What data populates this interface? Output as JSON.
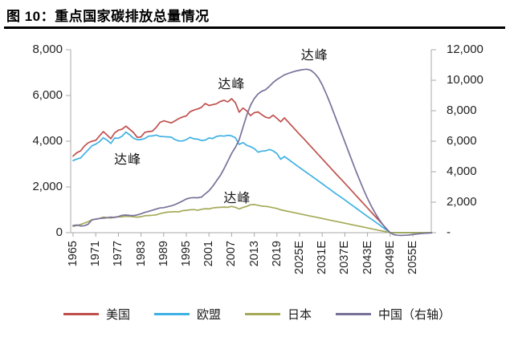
{
  "figure": {
    "title": "图 10：重点国家碳排放总量情况"
  },
  "colors": {
    "axis": "#A8A8A8",
    "tick_text": "#1f1f1f",
    "us": "#C0504D",
    "eu": "#3FB1E3",
    "japan": "#A6AA58",
    "china": "#79719A"
  },
  "chart_data": {
    "type": "line",
    "title": "重点国家碳排放总量情况",
    "x_axis": {
      "start_year": 1965,
      "end_year": 2060,
      "tick_labels": [
        "1965",
        "1971",
        "1977",
        "1983",
        "1989",
        "1995",
        "2001",
        "2007",
        "2013",
        "2019",
        "2025E",
        "2031E",
        "2037E",
        "2043E",
        "2049E",
        "2055E"
      ]
    },
    "left_axis": {
      "min": 0,
      "max": 8000,
      "tick_values": [
        8000,
        6000,
        4000,
        2000,
        0
      ],
      "tick_labels": [
        "8,000",
        "6,000",
        "4,000",
        "2,000",
        "0"
      ]
    },
    "right_axis": {
      "min": 0,
      "max": 12000,
      "tick_values": [
        12000,
        10000,
        8000,
        6000,
        4000,
        2000,
        0
      ],
      "tick_labels": [
        "12,000",
        "10,000",
        "8,000",
        "6,000",
        "4,000",
        "2,000",
        "-"
      ]
    },
    "annotations": [
      {
        "text": "达峰",
        "series": "eu",
        "year": 1979.5,
        "value": 3250,
        "axis": "left"
      },
      {
        "text": "达峰",
        "series": "us",
        "year": 2007,
        "value": 6550,
        "axis": "left"
      },
      {
        "text": "达峰",
        "series": "japan",
        "year": 2008.5,
        "value": 1580,
        "axis": "left"
      },
      {
        "text": "达峰",
        "series": "china",
        "year": 2029,
        "value": 11750,
        "axis": "right"
      }
    ],
    "series": [
      {
        "key": "us",
        "name": "美国",
        "axis": "left",
        "color": "#C0504D",
        "start_year": 1965,
        "values": [
          3350,
          3500,
          3580,
          3790,
          3930,
          4000,
          4040,
          4230,
          4420,
          4270,
          4110,
          4360,
          4480,
          4530,
          4660,
          4520,
          4380,
          4170,
          4190,
          4390,
          4420,
          4440,
          4600,
          4820,
          4890,
          4850,
          4800,
          4890,
          4990,
          5060,
          5110,
          5290,
          5360,
          5410,
          5480,
          5650,
          5560,
          5600,
          5640,
          5740,
          5790,
          5720,
          5860,
          5680,
          5270,
          5450,
          5330,
          5120,
          5250,
          5280,
          5160,
          5050,
          5010,
          5140,
          5000,
          4850,
          5020,
          4840,
          4660,
          4480,
          4300,
          4130,
          3950,
          3770,
          3590,
          3410,
          3230,
          3050,
          2870,
          2690,
          2510,
          2340,
          2160,
          1980,
          1800,
          1620,
          1440,
          1260,
          1080,
          900,
          720,
          540,
          360,
          180,
          0,
          0,
          0,
          0,
          0,
          0,
          0,
          0,
          0,
          0,
          0,
          0
        ]
      },
      {
        "key": "eu",
        "name": "欧盟",
        "axis": "left",
        "color": "#3FB1E3",
        "start_year": 1965,
        "values": [
          3150,
          3220,
          3270,
          3450,
          3620,
          3800,
          3870,
          3980,
          4150,
          4050,
          3900,
          4140,
          4130,
          4220,
          4400,
          4280,
          4130,
          4070,
          4070,
          4120,
          4220,
          4230,
          4270,
          4210,
          4200,
          4190,
          4180,
          4070,
          4010,
          4010,
          4070,
          4170,
          4100,
          4090,
          4030,
          4050,
          4140,
          4120,
          4210,
          4240,
          4220,
          4260,
          4230,
          4150,
          3860,
          3940,
          3820,
          3760,
          3680,
          3520,
          3570,
          3580,
          3640,
          3580,
          3460,
          3210,
          3330,
          3210,
          3090,
          2970,
          2850,
          2730,
          2610,
          2500,
          2380,
          2260,
          2140,
          2020,
          1900,
          1780,
          1660,
          1550,
          1430,
          1310,
          1190,
          1070,
          950,
          830,
          710,
          600,
          480,
          360,
          240,
          120,
          0,
          0,
          0,
          0,
          0,
          0,
          0,
          0,
          0,
          0,
          0,
          0
        ]
      },
      {
        "key": "japan",
        "name": "日本",
        "axis": "left",
        "color": "#A6AA58",
        "start_year": 1965,
        "values": [
          280,
          310,
          360,
          420,
          480,
          560,
          590,
          620,
          680,
          660,
          640,
          680,
          700,
          690,
          720,
          710,
          700,
          680,
          700,
          740,
          750,
          760,
          780,
          830,
          870,
          900,
          910,
          920,
          910,
          960,
          980,
          1000,
          1010,
          980,
          1020,
          1050,
          1040,
          1080,
          1100,
          1110,
          1120,
          1110,
          1150,
          1110,
          1040,
          1100,
          1150,
          1220,
          1230,
          1200,
          1160,
          1150,
          1130,
          1090,
          1060,
          1000,
          966,
          931,
          897,
          862,
          828,
          793,
          759,
          724,
          690,
          655,
          621,
          586,
          552,
          517,
          483,
          448,
          414,
          379,
          345,
          310,
          276,
          241,
          207,
          172,
          138,
          103,
          69,
          34,
          0,
          0,
          0,
          0,
          0,
          0,
          0,
          0,
          0,
          0,
          0,
          0
        ]
      },
      {
        "key": "china",
        "name": "中国（右轴）",
        "axis": "right",
        "color": "#79719A",
        "start_year": 1965,
        "values": [
          470,
          500,
          440,
          460,
          560,
          850,
          890,
          930,
          950,
          980,
          1020,
          1000,
          1060,
          1140,
          1160,
          1130,
          1120,
          1170,
          1240,
          1330,
          1400,
          1470,
          1550,
          1620,
          1640,
          1700,
          1760,
          1840,
          1960,
          2080,
          2210,
          2280,
          2300,
          2290,
          2330,
          2550,
          2750,
          3050,
          3400,
          3750,
          4200,
          4700,
          5200,
          5600,
          6100,
          6900,
          7700,
          8350,
          8800,
          9100,
          9280,
          9380,
          9600,
          9850,
          10050,
          10200,
          10350,
          10450,
          10530,
          10600,
          10660,
          10700,
          10720,
          10650,
          10450,
          10150,
          9700,
          9150,
          8550,
          7900,
          7250,
          6600,
          5950,
          5300,
          4650,
          4000,
          3400,
          2800,
          2250,
          1750,
          1300,
          900,
          550,
          250,
          0,
          -130,
          -170,
          -180,
          -170,
          -150,
          -120,
          -90,
          -60,
          -40,
          -25,
          -15
        ]
      }
    ]
  }
}
